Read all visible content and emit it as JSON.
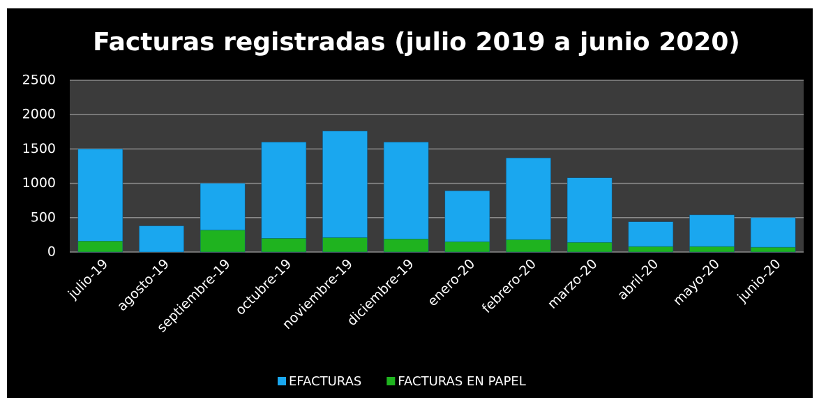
{
  "chart_data": {
    "type": "stacked_bar",
    "title": "Facturas registradas (julio 2019 a junio 2020)",
    "categories": [
      "julio-19",
      "agosto-19",
      "septiembre-19",
      "octubre-19",
      "noviembre-19",
      "diciembre-19",
      "enero-20",
      "febrero-20",
      "marzo-20",
      "abril-20",
      "mayo-20",
      "junio-20"
    ],
    "series": [
      {
        "name": "EFACTURAS",
        "color": "#1aa7ef",
        "values": [
          1340,
          380,
          680,
          1400,
          1550,
          1410,
          740,
          1190,
          940,
          360,
          460,
          430
        ]
      },
      {
        "name": "FACTURAS EN PAPEL",
        "color": "#1fb31f",
        "values": [
          160,
          0,
          320,
          200,
          210,
          190,
          150,
          180,
          140,
          80,
          80,
          70
        ]
      }
    ],
    "ylim": [
      0,
      2500
    ],
    "yticks": [
      0,
      500,
      1000,
      1500,
      2000,
      2500
    ],
    "grid": true,
    "legend": "bottom"
  }
}
